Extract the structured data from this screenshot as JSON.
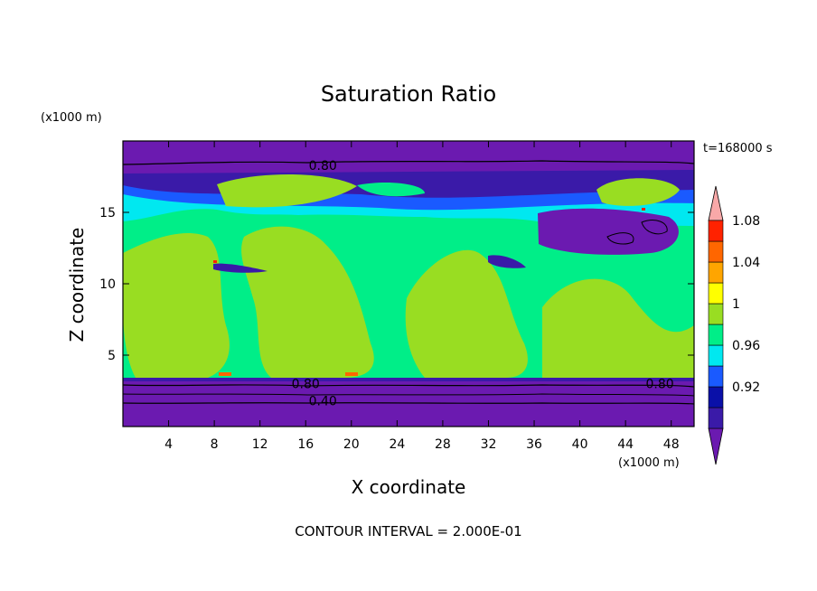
{
  "chart_data": {
    "type": "heatmap",
    "title": "Saturation Ratio",
    "xlabel": "X coordinate",
    "ylabel": "Z coordinate",
    "x_units": "(x1000 m)",
    "z_units": "(x1000 m)",
    "time_label": "t=168000 s",
    "footer": "CONTOUR INTERVAL = 2.000E-01",
    "xlim": [
      0,
      50
    ],
    "ylim": [
      0,
      20
    ],
    "xticks": [
      "4",
      "8",
      "12",
      "16",
      "20",
      "24",
      "28",
      "32",
      "36",
      "40",
      "44",
      "48"
    ],
    "yticks": [
      "5",
      "10",
      "15"
    ],
    "colorbar_labels": [
      "0.92",
      "0.96",
      "1",
      "1.04",
      "1.08"
    ],
    "colorbar_colors": [
      "#6b1ab0",
      "#3a1aa8",
      "#0a10a8",
      "#1a5aff",
      "#00e8f0",
      "#00ee88",
      "#99dd22",
      "#ffff00",
      "#ffa500",
      "#ff6600",
      "#ff2200",
      "#f8a8a8"
    ],
    "contour_labels": [
      {
        "text": "0.80",
        "x": 17.5,
        "z": 18.3
      },
      {
        "text": "0.80",
        "x": 16.0,
        "z": 3.0
      },
      {
        "text": "0.40",
        "x": 17.5,
        "z": 1.8
      },
      {
        "text": "0.80",
        "x": 47.0,
        "z": 3.0
      }
    ],
    "grid": false
  }
}
